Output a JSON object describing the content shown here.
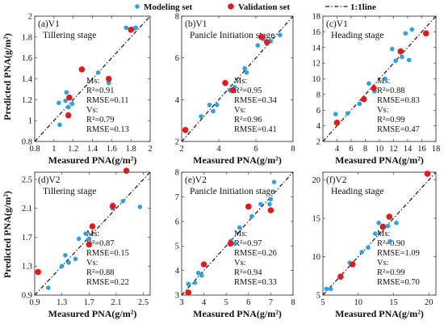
{
  "legend": {
    "modeling_label": "Modeling set",
    "validation_label": "Validation set",
    "line_label": "1:1line"
  },
  "colors": {
    "modeling": "#2f9fe6",
    "validation": "#e01b1b",
    "line": "#111111"
  },
  "axis_titles": {
    "x": "Measured PNA(g/m²)",
    "y": "Predicted PNA(g/m²)"
  },
  "chart_data": [
    {
      "type": "scatter",
      "panel_label": "(a)V1",
      "title": "Tillering stage",
      "xlabel": "Measured PNA(g/m²)",
      "ylabel": "Predicted PNA(g/m²)",
      "xlim": [
        0.8,
        2.0
      ],
      "ylim": [
        0.8,
        2.0
      ],
      "xticks": [
        "0.8",
        "1",
        "1.2",
        "1.4",
        "1.6",
        "1.8",
        "2"
      ],
      "yticks": [
        "0.8",
        "1",
        "1.2",
        "1.4",
        "1.6",
        "1.8",
        "2"
      ],
      "stats": [
        "Ms:",
        "R²=0.91",
        "RMSE=0.11",
        "Vs:",
        "R²=0.79",
        "RMSE=0.13"
      ],
      "series": [
        {
          "name": "Modeling set",
          "points": [
            [
              1.06,
              0.96
            ],
            [
              1.05,
              1.17
            ],
            [
              1.12,
              1.19
            ],
            [
              1.13,
              1.27
            ],
            [
              1.15,
              1.13
            ],
            [
              1.19,
              1.16
            ],
            [
              1.46,
              1.46
            ],
            [
              1.57,
              1.36
            ],
            [
              1.57,
              1.38
            ],
            [
              1.75,
              1.89
            ],
            [
              1.83,
              1.88
            ],
            [
              1.85,
              1.89
            ]
          ]
        },
        {
          "name": "Validation set",
          "points": [
            [
              1.15,
              1.05
            ],
            [
              1.16,
              1.22
            ],
            [
              1.29,
              1.49
            ],
            [
              1.57,
              1.4
            ],
            [
              1.8,
              1.87
            ]
          ]
        }
      ]
    },
    {
      "type": "scatter",
      "panel_label": "(b)V1",
      "title": "Panicle Initiation stage",
      "xlabel": "Measured PNA(g/m²)",
      "ylabel": "",
      "xlim": [
        2,
        8
      ],
      "ylim": [
        2,
        8
      ],
      "xticks": [
        "2",
        "4",
        "6",
        "8"
      ],
      "yticks": [
        "2",
        "4",
        "6",
        "8"
      ],
      "stats": [
        "Ms:",
        "R²=0.95",
        "RMSE=0.34",
        "Vs:",
        "R²=0.96",
        "RMSE=0.41"
      ],
      "series": [
        {
          "name": "Modeling set",
          "points": [
            [
              3.05,
              3.2
            ],
            [
              3.5,
              3.75
            ],
            [
              3.7,
              3.45
            ],
            [
              3.9,
              3.75
            ],
            [
              4.6,
              4.45
            ],
            [
              4.85,
              4.6
            ],
            [
              5.4,
              5.5
            ],
            [
              5.5,
              5.3
            ],
            [
              6.1,
              6.6
            ],
            [
              6.4,
              6.9
            ],
            [
              6.8,
              6.8
            ],
            [
              7.3,
              7.1
            ]
          ]
        },
        {
          "name": "Validation set",
          "points": [
            [
              2.2,
              2.55
            ],
            [
              4.35,
              4.8
            ],
            [
              4.75,
              4.45
            ],
            [
              6.3,
              7.0
            ],
            [
              6.6,
              6.75
            ]
          ]
        }
      ]
    },
    {
      "type": "scatter",
      "panel_label": "(c)V1",
      "title": "Heading stage",
      "xlabel": "Measured PNA(g/m²)",
      "ylabel": "",
      "xlim": [
        2,
        18
      ],
      "ylim": [
        2,
        18
      ],
      "xticks": [
        "4",
        "6",
        "8",
        "10",
        "12",
        "14",
        "16",
        "18"
      ],
      "yticks": [
        "2",
        "4",
        "6",
        "8",
        "10",
        "12",
        "14",
        "16",
        "18"
      ],
      "stats": [
        "Ms:",
        "R²=0.88",
        "RMSE=0.83",
        "Vs:",
        "R²=0.99",
        "RMSE=0.47"
      ],
      "series": [
        {
          "name": "Modeling set",
          "points": [
            [
              3.8,
              5.5
            ],
            [
              5.5,
              5.6
            ],
            [
              7.2,
              6.8
            ],
            [
              8.5,
              9.4
            ],
            [
              9.3,
              8.4
            ],
            [
              10.8,
              10.0
            ],
            [
              11.8,
              13.8
            ],
            [
              12.3,
              12.3
            ],
            [
              13.2,
              12.8
            ],
            [
              13.7,
              15.8
            ],
            [
              14.2,
              12.4
            ],
            [
              14.6,
              16.3
            ]
          ]
        },
        {
          "name": "Validation set",
          "points": [
            [
              4.0,
              4.4
            ],
            [
              7.8,
              7.4
            ],
            [
              9.2,
              8.8
            ],
            [
              13.0,
              13.5
            ],
            [
              16.6,
              15.8
            ]
          ]
        }
      ]
    },
    {
      "type": "scatter",
      "panel_label": "(d)V2",
      "title": "Tillering stage",
      "xlabel": "Measured PNA(g/m²)",
      "ylabel": "Predicted PNA(g/m²)",
      "xlim": [
        0.9,
        2.6
      ],
      "ylim": [
        0.9,
        2.6
      ],
      "xticks": [
        "0.9",
        "1.3",
        "1.7",
        "2.1",
        "2.5"
      ],
      "yticks": [
        "0.9",
        "1.3",
        "1.7",
        "2.1",
        "2.5"
      ],
      "stats": [
        "Ms:",
        "R²=0.87",
        "RMSE=0.15",
        "Vs:",
        "R²=0.88",
        "RMSE=0.22"
      ],
      "series": [
        {
          "name": "Modeling set",
          "points": [
            [
              1.1,
              1.0
            ],
            [
              1.3,
              1.3
            ],
            [
              1.35,
              1.45
            ],
            [
              1.4,
              1.35
            ],
            [
              1.5,
              1.4
            ],
            [
              1.55,
              1.68
            ],
            [
              1.65,
              1.75
            ],
            [
              1.7,
              1.68
            ],
            [
              2.05,
              2.1
            ],
            [
              2.05,
              2.15
            ],
            [
              2.2,
              2.2
            ],
            [
              2.45,
              2.12
            ]
          ]
        },
        {
          "name": "Validation set",
          "points": [
            [
              0.95,
              1.22
            ],
            [
              1.7,
              1.6
            ],
            [
              1.75,
              1.85
            ],
            [
              2.05,
              2.13
            ],
            [
              2.25,
              2.62
            ]
          ]
        }
      ]
    },
    {
      "type": "scatter",
      "panel_label": "(e)V2",
      "title": "Panicle Initiation stage",
      "xlabel": "Measured PNA(g/m²)",
      "ylabel": "",
      "xlim": [
        3,
        8
      ],
      "ylim": [
        3,
        8
      ],
      "xticks": [
        "3",
        "4",
        "5",
        "6",
        "7",
        "8"
      ],
      "yticks": [
        "3",
        "4",
        "5",
        "6",
        "7",
        "8"
      ],
      "stats": [
        "Ms:",
        "R²=0.97",
        "RMSE=0.26",
        "Vs:",
        "R²=0.94",
        "RMSE=0.33"
      ],
      "series": [
        {
          "name": "Modeling set",
          "points": [
            [
              3.3,
              3.45
            ],
            [
              3.6,
              3.5
            ],
            [
              3.75,
              3.9
            ],
            [
              3.9,
              3.8
            ],
            [
              5.2,
              5.2
            ],
            [
              5.4,
              5.1
            ],
            [
              5.6,
              5.75
            ],
            [
              6.15,
              6.2
            ],
            [
              6.55,
              6.7
            ],
            [
              6.95,
              6.7
            ],
            [
              7.0,
              6.9
            ],
            [
              7.15,
              7.6
            ]
          ]
        },
        {
          "name": "Validation set",
          "points": [
            [
              3.3,
              3.1
            ],
            [
              4.0,
              4.25
            ],
            [
              5.2,
              5.1
            ],
            [
              6.0,
              6.6
            ],
            [
              7.0,
              6.45
            ]
          ]
        }
      ]
    },
    {
      "type": "scatter",
      "panel_label": "(f)V2",
      "title": "Heading stage",
      "xlabel": "Measured PNA(g/m²)",
      "ylabel": "",
      "xlim": [
        5,
        21
      ],
      "ylim": [
        5,
        21
      ],
      "xticks": [
        "5",
        "10",
        "15",
        "20"
      ],
      "yticks": [
        "5",
        "10",
        "15",
        "20"
      ],
      "stats": [
        "Ms:",
        "R²=0.90",
        "RMSE=1.09",
        "Vs:",
        "R²=0.99",
        "RMSE=0.70"
      ],
      "series": [
        {
          "name": "Modeling set",
          "points": [
            [
              5.5,
              5.8
            ],
            [
              6.1,
              5.8
            ],
            [
              7.5,
              7.5
            ],
            [
              8.8,
              9.2
            ],
            [
              10.5,
              10.6
            ],
            [
              11.4,
              11.2
            ],
            [
              12.4,
              13.0
            ],
            [
              12.9,
              14.4
            ],
            [
              13.4,
              13.8
            ],
            [
              14.2,
              14.0
            ],
            [
              14.5,
              12.0
            ],
            [
              15.4,
              14.4
            ]
          ]
        },
        {
          "name": "Validation set",
          "points": [
            [
              7.5,
              7.4
            ],
            [
              9.2,
              9.0
            ],
            [
              13.5,
              13.9
            ],
            [
              14.4,
              15.2
            ],
            [
              19.8,
              20.8
            ]
          ]
        }
      ]
    }
  ]
}
